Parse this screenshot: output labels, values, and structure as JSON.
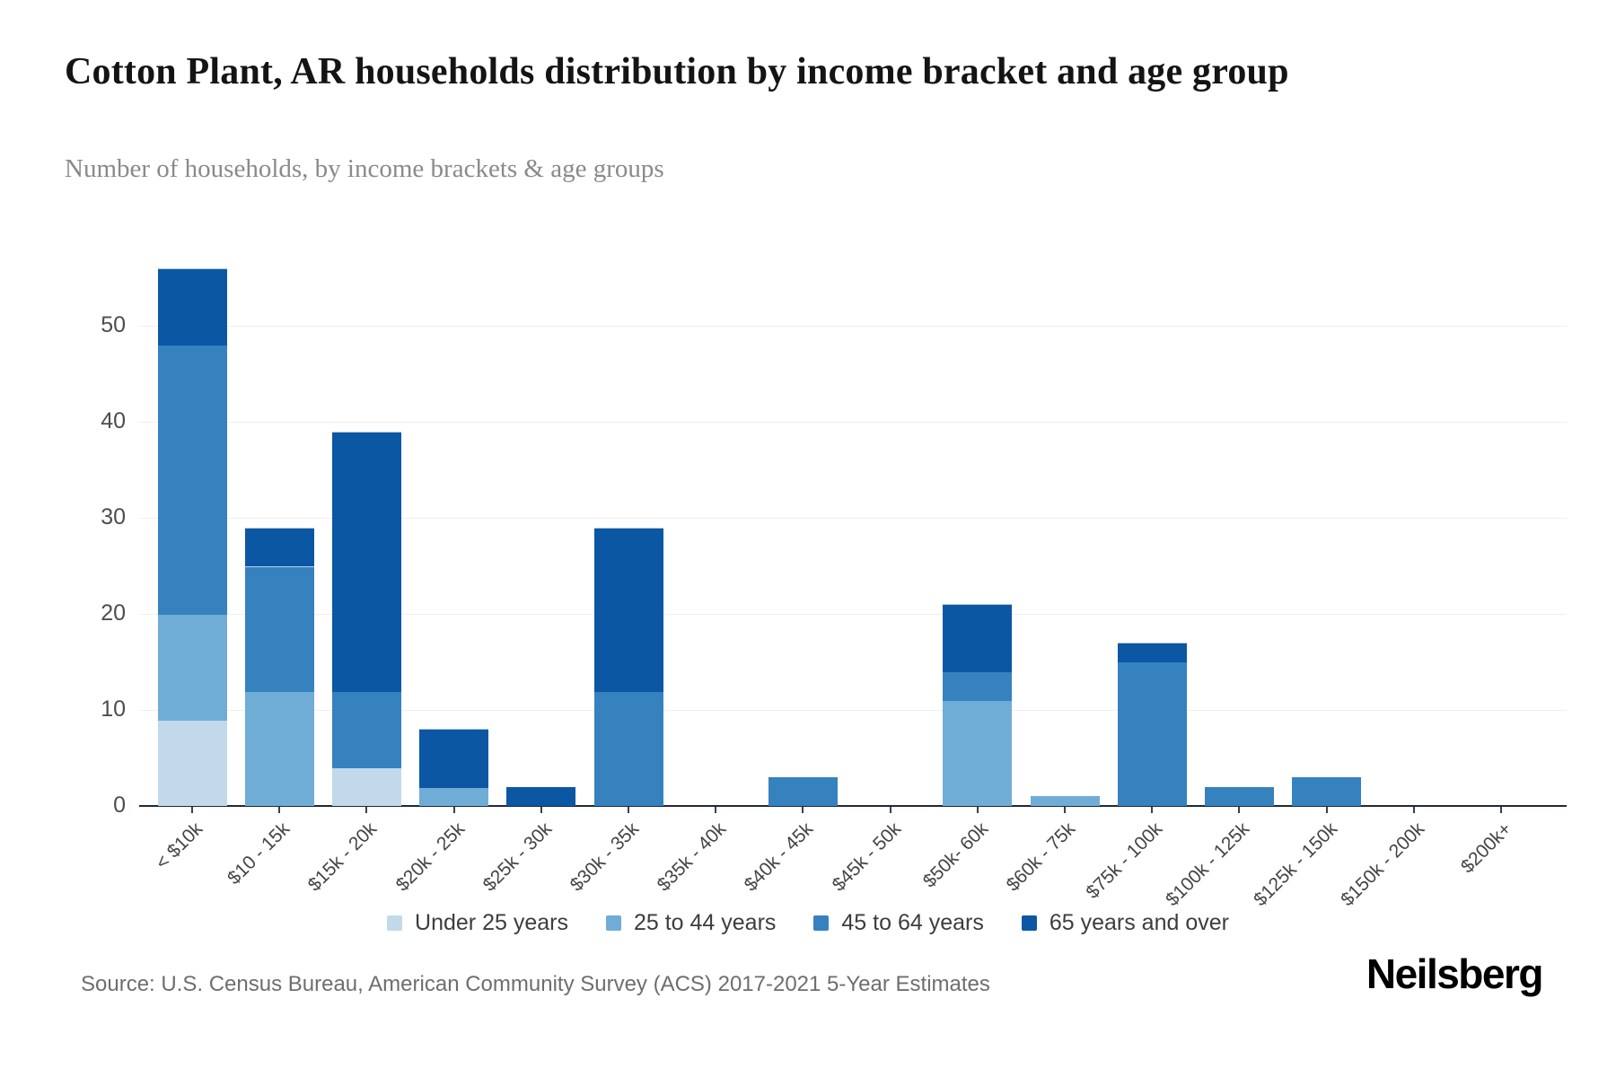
{
  "header": {
    "title": "Cotton Plant, AR households distribution by income bracket and age group",
    "subtitle": "Number of households, by income brackets & age groups"
  },
  "chart_data": {
    "type": "bar",
    "stacked": true,
    "title": "Cotton Plant, AR households distribution by income bracket and age group",
    "subtitle": "Number of households, by income brackets & age groups",
    "xlabel": "",
    "ylabel": "",
    "ylim": [
      0,
      59
    ],
    "y_ticks": [
      0,
      10,
      20,
      30,
      40,
      50
    ],
    "grid": "horizontal",
    "legend_position": "bottom",
    "categories": [
      "< $10k",
      "$10 - 15k",
      "$15k - 20k",
      "$20k - 25k",
      "$25k - 30k",
      "$30k - 35k",
      "$35k - 40k",
      "$40k - 45k",
      "$45k - 50k",
      "$50k- 60k",
      "$60k - 75k",
      "$75k - 100k",
      "$100k - 125k",
      "$125k - 150k",
      "$150k - 200k",
      "$200k+"
    ],
    "series": [
      {
        "name": "Under 25 years",
        "color": "#c1d9eb",
        "values": [
          9,
          0,
          4,
          0,
          0,
          0,
          0,
          0,
          0,
          0,
          0,
          0,
          0,
          0,
          0,
          0
        ]
      },
      {
        "name": "25 to 44 years",
        "color": "#6fadd6",
        "values": [
          11,
          12,
          0,
          2,
          0,
          0,
          0,
          0,
          0,
          11,
          1,
          0,
          0,
          0,
          0,
          0
        ]
      },
      {
        "name": "45 to 64 years",
        "color": "#3582bf",
        "values": [
          28,
          13,
          8,
          0,
          0,
          12,
          0,
          3,
          0,
          3,
          0,
          15,
          2,
          3,
          0,
          0
        ]
      },
      {
        "name": "65 years and over",
        "color": "#0b57a4",
        "values": [
          8,
          4,
          27,
          6,
          2,
          17,
          0,
          0,
          0,
          7,
          0,
          2,
          0,
          0,
          0,
          0
        ]
      }
    ],
    "totals": [
      56,
      29,
      39,
      8,
      2,
      29,
      0,
      3,
      0,
      21,
      1,
      17,
      2,
      3,
      0,
      0
    ]
  },
  "footer": {
    "source": "Source: U.S. Census Bureau, American Community Survey (ACS) 2017-2021 5-Year Estimates",
    "brand": "Neilsberg"
  }
}
